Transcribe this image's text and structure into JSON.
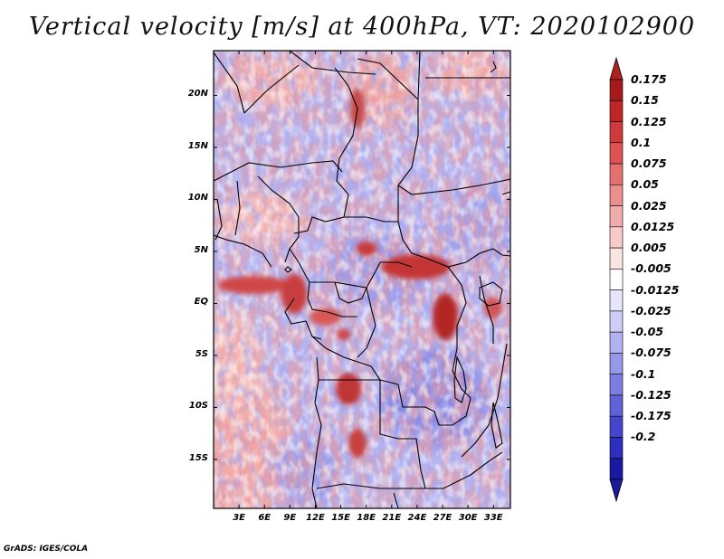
{
  "title": "Vertical velocity [m/s] at 400hPa, VT: 2020102900",
  "footer": "GrADS: IGES/COLA",
  "map": {
    "lat_labels": [
      "20N",
      "15N",
      "10N",
      "5N",
      "EQ",
      "5S",
      "10S",
      "15S"
    ],
    "lon_labels": [
      "3E",
      "6E",
      "9E",
      "12E",
      "15E",
      "18E",
      "21E",
      "24E",
      "27E",
      "30E",
      "33E"
    ],
    "lat_values": [
      20,
      15,
      10,
      5,
      0,
      -5,
      -10,
      -15
    ],
    "lon_values": [
      3,
      6,
      9,
      12,
      15,
      18,
      21,
      24,
      27,
      30,
      33
    ],
    "lon_range": [
      0,
      35
    ],
    "lat_range": [
      -19.7,
      24.3
    ]
  },
  "colorbar": {
    "labels": [
      "0.175",
      "0.15",
      "0.125",
      "0.1",
      "0.075",
      "0.05",
      "0.025",
      "0.0125",
      "0.005",
      "-0.005",
      "-0.0125",
      "-0.025",
      "-0.05",
      "-0.075",
      "-0.1",
      "-0.125",
      "-0.175",
      "-0.2"
    ],
    "colors": [
      "#a51a1a",
      "#bd2727",
      "#cf3a3a",
      "#dc5353",
      "#e47070",
      "#ec8e8e",
      "#f3acac",
      "#f8caca",
      "#fbe4e4",
      "#ffffff",
      "#e6e6fb",
      "#cdcdf7",
      "#b2b2f1",
      "#9898ea",
      "#7d7de2",
      "#6262d8",
      "#4646cc",
      "#2e2ebd",
      "#1a1aa0"
    ],
    "top_color": "#b02020",
    "bottom_color": "#1a1a9a"
  }
}
